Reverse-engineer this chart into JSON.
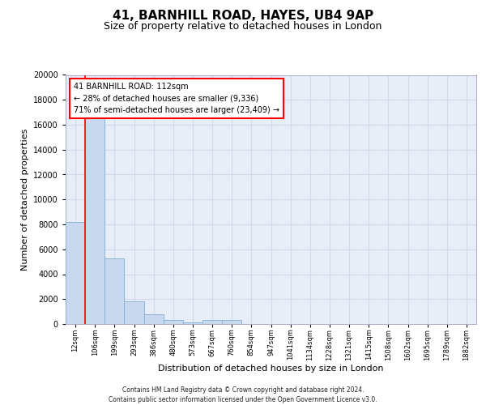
{
  "title1": "41, BARNHILL ROAD, HAYES, UB4 9AP",
  "title2": "Size of property relative to detached houses in London",
  "xlabel": "Distribution of detached houses by size in London",
  "ylabel": "Number of detached properties",
  "categories": [
    "12sqm",
    "106sqm",
    "199sqm",
    "293sqm",
    "386sqm",
    "480sqm",
    "573sqm",
    "667sqm",
    "760sqm",
    "854sqm",
    "947sqm",
    "1041sqm",
    "1134sqm",
    "1228sqm",
    "1321sqm",
    "1415sqm",
    "1508sqm",
    "1602sqm",
    "1695sqm",
    "1789sqm",
    "1882sqm"
  ],
  "values": [
    8200,
    16600,
    5300,
    1800,
    800,
    300,
    150,
    300,
    300,
    0,
    0,
    0,
    0,
    0,
    0,
    0,
    0,
    0,
    0,
    0,
    0
  ],
  "bar_color": "#c8d8ee",
  "bar_edge_color": "#8ab4d8",
  "red_line_index": 1,
  "annotation_line1": "41 BARNHILL ROAD: 112sqm",
  "annotation_line2": "← 28% of detached houses are smaller (9,336)",
  "annotation_line3": "71% of semi-detached houses are larger (23,409) →",
  "ylim": [
    0,
    20000
  ],
  "yticks": [
    0,
    2000,
    4000,
    6000,
    8000,
    10000,
    12000,
    14000,
    16000,
    18000,
    20000
  ],
  "footer1": "Contains HM Land Registry data © Crown copyright and database right 2024.",
  "footer2": "Contains public sector information licensed under the Open Government Licence v3.0.",
  "grid_color": "#d0daea",
  "background_color": "#e8eef8",
  "title1_fontsize": 11,
  "title2_fontsize": 9,
  "xlabel_fontsize": 8,
  "ylabel_fontsize": 8,
  "ytick_fontsize": 7,
  "xtick_fontsize": 6,
  "footer_fontsize": 5.5
}
